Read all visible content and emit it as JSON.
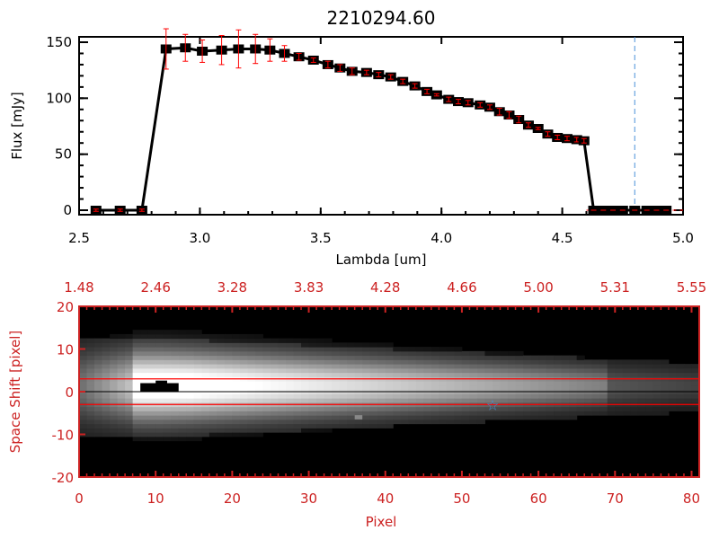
{
  "colors": {
    "axis_top": "#000000",
    "axis_bottom": "#cc2222",
    "error": "#ff0000",
    "marker": "#000000",
    "dashed_line": "#4a90d9",
    "star": "#4a90d9"
  },
  "chart_data": [
    {
      "type": "line",
      "title": "2210294.60",
      "xlabel": "Lambda [um]",
      "ylabel": "Flux [mJy]",
      "xlim": [
        2.5,
        5.0
      ],
      "ylim": [
        -3,
        152
      ],
      "xticks": [
        "2.5",
        "3.0",
        "3.5",
        "4.0",
        "4.5",
        "5.0"
      ],
      "yticks": [
        "0",
        "50",
        "100",
        "150"
      ],
      "vline_dashed_x": 4.8,
      "hline_dashed_y": 0,
      "series": [
        {
          "name": "flux",
          "x": [
            2.57,
            2.67,
            2.76,
            2.86,
            2.94,
            3.01,
            3.09,
            3.16,
            3.23,
            3.29,
            3.35,
            3.41,
            3.47,
            3.53,
            3.58,
            3.63,
            3.69,
            3.74,
            3.79,
            3.84,
            3.89,
            3.94,
            3.98,
            4.03,
            4.07,
            4.11,
            4.16,
            4.2,
            4.24,
            4.28,
            4.32,
            4.36,
            4.4,
            4.44,
            4.48,
            4.52,
            4.56,
            4.59,
            4.63,
            4.67,
            4.71,
            4.75,
            4.8,
            4.85,
            4.89,
            4.93
          ],
          "y": [
            0,
            0,
            0,
            144,
            145,
            142,
            143,
            144,
            144,
            143,
            140,
            137,
            134,
            130,
            127,
            124,
            123,
            121,
            119,
            115,
            111,
            106,
            103,
            99,
            97,
            96,
            94,
            92,
            88,
            85,
            81,
            76,
            73,
            68,
            65,
            64,
            63,
            62,
            0,
            0,
            0,
            0,
            0,
            0,
            0,
            0
          ],
          "err": [
            1,
            1,
            1,
            18,
            12,
            10,
            13,
            17,
            13,
            10,
            7,
            3,
            2,
            3,
            3,
            3,
            2,
            2,
            2,
            2,
            2,
            2,
            1,
            2,
            2,
            2,
            2,
            2,
            3,
            3,
            3,
            2,
            1,
            2,
            2,
            2,
            2,
            2,
            0,
            0,
            0,
            0,
            0,
            0,
            0,
            0
          ]
        }
      ]
    },
    {
      "type": "heatmap",
      "xlabel": "Pixel",
      "ylabel": "Space Shift [pixel]",
      "xlim": [
        0,
        81
      ],
      "ylim": [
        -21,
        21
      ],
      "xticks": [
        "0",
        "10",
        "20",
        "30",
        "40",
        "50",
        "60",
        "70",
        "80"
      ],
      "yticks": [
        "20",
        "10",
        "0",
        "-10",
        "-20"
      ],
      "top_xticks": [
        "1.48",
        "2.46",
        "3.28",
        "3.83",
        "4.28",
        "4.66",
        "5.00",
        "5.31",
        "5.55"
      ],
      "aperture_lines_y": [
        3,
        -3
      ],
      "center_line_y": 0,
      "star_marker": {
        "x": 54,
        "y": -3
      }
    }
  ]
}
